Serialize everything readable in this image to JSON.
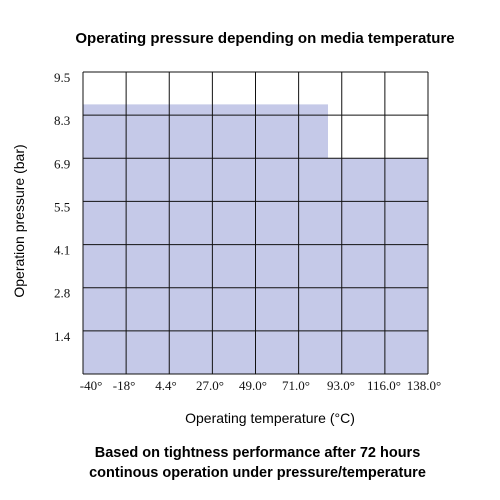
{
  "chart_data": {
    "type": "area",
    "title": "Operating pressure depending on media temperature",
    "xlabel": "Operating temperature (°C)",
    "ylabel": "Operation pressure (bar)",
    "x_ticks": [
      "-40°",
      "-18°",
      "4.4°",
      "27.0°",
      "49.0°",
      "71.0°",
      "93.0°",
      "116.0°",
      "138.0°"
    ],
    "y_ticks": [
      "9.5",
      "8.3",
      "6.9",
      "5.5",
      "4.1",
      "2.8",
      "1.4"
    ],
    "series": [
      {
        "values": [
          {
            "x_from": "-40°",
            "x_to": "~88°",
            "pressure": 8.6
          },
          {
            "x_from": "~88°",
            "x_to": "138.0°",
            "pressure": 6.9
          }
        ],
        "color": "#c5c9e8"
      }
    ],
    "grid": true,
    "legend": "none"
  },
  "footnote": {
    "line1": "Based on tightness performance after 72 hours",
    "line2": "continous operation under pressure/temperature"
  }
}
